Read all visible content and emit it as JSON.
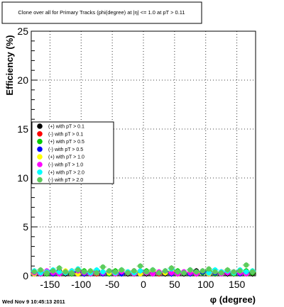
{
  "title": "Clone  over all for Primary Tracks (phi(degree) at |η| <= 1.0 at pT > 0.11",
  "footer": {
    "timestamp": "Wed Nov  9 10:45:13 2011"
  },
  "chart_data": {
    "type": "scatter",
    "title": "Clone  over all for Primary Tracks (phi(degree) at |η| <= 1.0 at pT > 0.11",
    "xlabel": "φ (degree)",
    "ylabel": "Efficiency (%)",
    "xlim": [
      -180,
      180
    ],
    "ylim": [
      0,
      25
    ],
    "xticks": [
      -150,
      -100,
      -50,
      0,
      50,
      100,
      150
    ],
    "yticks": [
      0,
      5,
      10,
      15,
      20,
      25
    ],
    "grid": true,
    "legend_position": "middle-left",
    "x": [
      -175,
      -165,
      -155,
      -145,
      -135,
      -125,
      -115,
      -105,
      -95,
      -85,
      -75,
      -65,
      -55,
      -45,
      -35,
      -25,
      -15,
      -5,
      5,
      15,
      25,
      35,
      45,
      55,
      65,
      75,
      85,
      95,
      105,
      115,
      125,
      135,
      145,
      155,
      165,
      175
    ],
    "series": [
      {
        "name": "(+) with pT > 0.1",
        "color": "#000000",
        "values": [
          0.3,
          0.2,
          0.4,
          0.3,
          0.5,
          0.2,
          0.3,
          0.4,
          0.2,
          0.3,
          0.5,
          0.3,
          0.2,
          0.4,
          0.3,
          0.2,
          0.5,
          0.3,
          0.2,
          0.4,
          0.3,
          0.2,
          0.3,
          0.4,
          0.2,
          0.3,
          0.5,
          0.3,
          0.2,
          0.4,
          0.3,
          0.2,
          0.3,
          0.4,
          0.3,
          0.2
        ]
      },
      {
        "name": "(-) with pT > 0.1",
        "color": "#ff0000",
        "values": [
          0.2,
          0.3,
          0.3,
          0.4,
          0.2,
          0.3,
          0.5,
          0.2,
          0.3,
          0.4,
          0.2,
          0.3,
          0.4,
          0.2,
          0.3,
          0.4,
          0.2,
          0.3,
          0.4,
          0.3,
          0.2,
          0.4,
          0.3,
          0.2,
          0.4,
          0.3,
          0.2,
          0.4,
          0.3,
          0.2,
          0.4,
          0.3,
          0.2,
          0.3,
          0.4,
          0.3
        ]
      },
      {
        "name": "(+) with pT > 0.5",
        "color": "#00cc00",
        "values": [
          0.4,
          0.3,
          0.2,
          0.5,
          0.3,
          0.4,
          0.2,
          0.3,
          0.5,
          0.2,
          0.4,
          0.3,
          0.2,
          0.5,
          0.3,
          0.4,
          0.2,
          0.3,
          0.5,
          0.2,
          0.3,
          0.4,
          0.2,
          0.5,
          0.3,
          0.2,
          0.4,
          0.3,
          0.5,
          0.2,
          0.3,
          0.4,
          0.2,
          0.3,
          0.5,
          0.3
        ]
      },
      {
        "name": "(-) with pT > 0.5",
        "color": "#0000ff",
        "values": [
          0.3,
          0.4,
          0.3,
          0.2,
          0.4,
          0.3,
          0.4,
          0.3,
          0.2,
          0.4,
          0.3,
          0.2,
          0.4,
          0.3,
          0.2,
          0.3,
          0.4,
          0.2,
          0.3,
          0.4,
          0.3,
          0.4,
          0.2,
          0.3,
          0.4,
          0.2,
          0.3,
          0.4,
          0.2,
          0.3,
          0.4,
          0.3,
          0.4,
          0.2,
          0.3,
          0.4
        ]
      },
      {
        "name": "(+) with pT > 1.0",
        "color": "#ffff00",
        "values": [
          0.2,
          0.5,
          0.3,
          0.4,
          0.3,
          0.5,
          0.3,
          0.2,
          0.4,
          0.5,
          0.3,
          0.4,
          0.3,
          0.2,
          0.5,
          0.3,
          0.4,
          0.2,
          0.3,
          0.5,
          0.4,
          0.3,
          0.5,
          0.2,
          0.3,
          0.4,
          0.3,
          0.5,
          0.2,
          0.4,
          0.3,
          0.5,
          0.3,
          0.4,
          0.2,
          0.5
        ]
      },
      {
        "name": "(-) with pT > 1.0",
        "color": "#ff00ff",
        "values": [
          0.3,
          0.2,
          0.5,
          0.3,
          0.2,
          0.4,
          0.3,
          0.5,
          0.3,
          0.2,
          0.4,
          0.3,
          0.5,
          0.2,
          0.4,
          0.3,
          0.2,
          0.5,
          0.3,
          0.2,
          0.4,
          0.5,
          0.3,
          0.2,
          0.4,
          0.3,
          0.2,
          0.5,
          0.3,
          0.4,
          0.2,
          0.3,
          0.4,
          0.3,
          0.2,
          0.4
        ]
      },
      {
        "name": "(+) with pT > 2.0",
        "color": "#00ffff",
        "values": [
          0.5,
          0.3,
          0.4,
          0.6,
          0.4,
          0.3,
          0.5,
          0.7,
          0.4,
          0.3,
          0.6,
          0.4,
          0.5,
          0.3,
          0.6,
          0.4,
          0.3,
          0.5,
          0.4,
          0.6,
          0.3,
          0.5,
          0.7,
          0.4,
          0.3,
          0.6,
          0.4,
          0.5,
          0.3,
          0.6,
          0.4,
          0.5,
          0.3,
          0.6,
          0.4,
          0.5
        ]
      },
      {
        "name": "(-) with pT > 2.0",
        "color": "#5ccc5c",
        "values": [
          0.4,
          0.6,
          0.3,
          0.5,
          0.8,
          0.4,
          0.3,
          0.6,
          0.4,
          0.5,
          0.3,
          0.9,
          0.5,
          0.4,
          0.6,
          0.3,
          0.5,
          1.0,
          0.4,
          0.6,
          0.3,
          0.5,
          0.8,
          0.4,
          0.3,
          0.6,
          0.4,
          0.5,
          0.7,
          0.4,
          0.3,
          0.6,
          0.4,
          0.5,
          1.1,
          0.4
        ]
      }
    ]
  }
}
